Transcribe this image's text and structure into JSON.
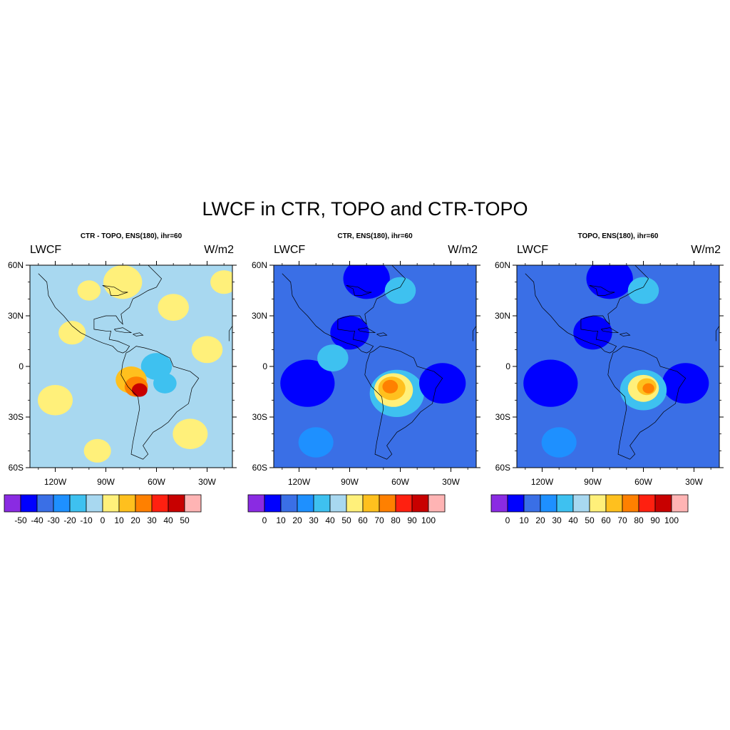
{
  "title": "LWCF in CTR, TOPO and CTR-TOPO",
  "panels": [
    {
      "id": "diff",
      "title": "CTR - TOPO, ENS(180), ihr=60",
      "left_label": "LWCF",
      "right_label": "W/m2",
      "colorbar": {
        "colors": [
          "#8a2be2",
          "#0000ff",
          "#3a6fe6",
          "#1e90ff",
          "#3ec1f0",
          "#a8d8f0",
          "#fff07a",
          "#ffc01e",
          "#ff8000",
          "#ff2010",
          "#c80000",
          "#ffb4b4"
        ],
        "labels": [
          "-50",
          "-40",
          "-30",
          "-20",
          "-10",
          "0",
          "10",
          "20",
          "30",
          "40",
          "50"
        ]
      },
      "background_level": 5,
      "blobs": [
        {
          "lon": -80,
          "lat": 50,
          "r": 10,
          "level": 6
        },
        {
          "lon": -50,
          "lat": 35,
          "r": 8,
          "level": 6
        },
        {
          "lon": -110,
          "lat": 20,
          "r": 7,
          "level": 6
        },
        {
          "lon": -30,
          "lat": 10,
          "r": 8,
          "level": 6
        },
        {
          "lon": -120,
          "lat": -20,
          "r": 9,
          "level": 6
        },
        {
          "lon": -100,
          "lat": 45,
          "r": 6,
          "level": 6
        },
        {
          "lon": -40,
          "lat": -40,
          "r": 9,
          "level": 6
        },
        {
          "lon": -95,
          "lat": -50,
          "r": 7,
          "level": 6
        },
        {
          "lon": -20,
          "lat": 50,
          "r": 7,
          "level": 6
        },
        {
          "lon": -60,
          "lat": 0,
          "r": 8,
          "level": 4
        },
        {
          "lon": -55,
          "lat": -10,
          "r": 6,
          "level": 4
        },
        {
          "lon": -75,
          "lat": -8,
          "r": 8,
          "level": 7
        },
        {
          "lon": -72,
          "lat": -12,
          "r": 6,
          "level": 8
        },
        {
          "lon": -70,
          "lat": -14,
          "r": 4,
          "level": 10
        }
      ]
    },
    {
      "id": "ctr",
      "title": "CTR, ENS(180), ihr=60",
      "left_label": "LWCF",
      "right_label": "W/m2",
      "colorbar": {
        "colors": [
          "#8a2be2",
          "#0000ff",
          "#3a6fe6",
          "#1e90ff",
          "#3ec1f0",
          "#a8d8f0",
          "#fff07a",
          "#ffc01e",
          "#ff8000",
          "#ff2010",
          "#c80000",
          "#ffb4b4"
        ],
        "labels": [
          "0",
          "10",
          "20",
          "30",
          "40",
          "50",
          "60",
          "70",
          "80",
          "90",
          "100"
        ]
      },
      "background_level": 2,
      "blobs": [
        {
          "lon": -80,
          "lat": 52,
          "r": 12,
          "level": 1
        },
        {
          "lon": -90,
          "lat": 20,
          "r": 10,
          "level": 1
        },
        {
          "lon": -115,
          "lat": -10,
          "r": 14,
          "level": 1
        },
        {
          "lon": -35,
          "lat": -10,
          "r": 12,
          "level": 1
        },
        {
          "lon": -60,
          "lat": 45,
          "r": 8,
          "level": 4
        },
        {
          "lon": -100,
          "lat": 5,
          "r": 8,
          "level": 4
        },
        {
          "lon": -110,
          "lat": -45,
          "r": 9,
          "level": 3
        },
        {
          "lon": -62,
          "lat": -16,
          "r": 14,
          "level": 4
        },
        {
          "lon": -64,
          "lat": -14,
          "r": 10,
          "level": 6
        },
        {
          "lon": -65,
          "lat": -13,
          "r": 7,
          "level": 7
        },
        {
          "lon": -66,
          "lat": -12,
          "r": 4,
          "level": 8
        }
      ]
    },
    {
      "id": "topo",
      "title": "TOPO, ENS(180), ihr=60",
      "left_label": "LWCF",
      "right_label": "W/m2",
      "colorbar": {
        "colors": [
          "#8a2be2",
          "#0000ff",
          "#3a6fe6",
          "#1e90ff",
          "#3ec1f0",
          "#a8d8f0",
          "#fff07a",
          "#ffc01e",
          "#ff8000",
          "#ff2010",
          "#c80000",
          "#ffb4b4"
        ],
        "labels": [
          "0",
          "10",
          "20",
          "30",
          "40",
          "50",
          "60",
          "70",
          "80",
          "90",
          "100"
        ]
      },
      "background_level": 2,
      "blobs": [
        {
          "lon": -80,
          "lat": 52,
          "r": 12,
          "level": 1
        },
        {
          "lon": -90,
          "lat": 20,
          "r": 10,
          "level": 1
        },
        {
          "lon": -115,
          "lat": -10,
          "r": 14,
          "level": 1
        },
        {
          "lon": -35,
          "lat": -10,
          "r": 12,
          "level": 1
        },
        {
          "lon": -60,
          "lat": 45,
          "r": 8,
          "level": 4
        },
        {
          "lon": -110,
          "lat": -45,
          "r": 9,
          "level": 3
        },
        {
          "lon": -60,
          "lat": -14,
          "r": 12,
          "level": 4
        },
        {
          "lon": -60,
          "lat": -13,
          "r": 8,
          "level": 6
        },
        {
          "lon": -58,
          "lat": -12,
          "r": 5,
          "level": 7
        },
        {
          "lon": -57,
          "lat": -13,
          "r": 3,
          "level": 8
        }
      ]
    }
  ],
  "map_axes": {
    "lon_min": -135,
    "lon_max": -15,
    "lat_min": -60,
    "lat_max": 60,
    "lon_ticks": [
      {
        "value": -120,
        "label": "120W"
      },
      {
        "value": -90,
        "label": "90W"
      },
      {
        "value": -60,
        "label": "60W"
      },
      {
        "value": -30,
        "label": "30W"
      }
    ],
    "lat_ticks": [
      {
        "value": 60,
        "label": "60N"
      },
      {
        "value": 30,
        "label": "30N"
      },
      {
        "value": 0,
        "label": "0"
      },
      {
        "value": -30,
        "label": "30S"
      },
      {
        "value": -60,
        "label": "60S"
      }
    ]
  }
}
